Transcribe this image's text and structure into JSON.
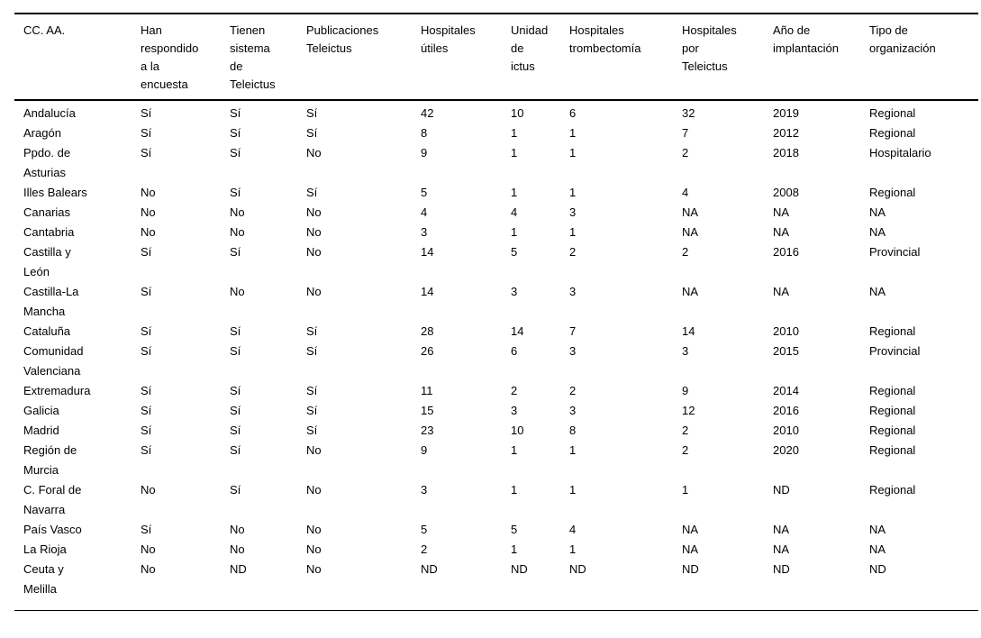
{
  "page": {
    "background_color": "#ffffff",
    "text_color": "#000000"
  },
  "chart_data": {
    "type": "table",
    "title": "",
    "columns": [
      "CC. AA.",
      "Han respondido a la encuesta",
      "Tienen sistema de Teleictus",
      "Publicaciones Teleictus",
      "Hospitales útiles",
      "Unidad de ictus",
      "Hospitales trombectomía",
      "Hospitales por Teleictus",
      "Año de implantación",
      "Tipo de organización"
    ]
  },
  "table": {
    "column_headers": [
      "CC. AA.",
      "Han\nrespondido\na la\nencuesta",
      "Tienen\nsistema\nde\nTeleictus",
      "Publicaciones\nTeleictus",
      "Hospitales\nútiles",
      "Unidad\nde\nictus",
      "Hospitales\ntrombectomía",
      "Hospitales\npor\nTeleictus",
      "Año de\nimplantación",
      "Tipo de\norganización"
    ],
    "rows": [
      [
        "Andalucía",
        "Sí",
        "Sí",
        "Sí",
        "42",
        "10",
        "6",
        "32",
        "2019",
        "Regional"
      ],
      [
        "Aragón",
        "Sí",
        "Sí",
        "Sí",
        "8",
        "1",
        "1",
        "7",
        "2012",
        "Regional"
      ],
      [
        "Ppdo. de Asturias",
        "Sí",
        "Sí",
        "No",
        "9",
        "1",
        "1",
        "2",
        "2018",
        "Hospitalario"
      ],
      [
        "Illes Balears",
        "No",
        "Sí",
        "Sí",
        "5",
        "1",
        "1",
        "4",
        "2008",
        "Regional"
      ],
      [
        "Canarias",
        "No",
        "No",
        "No",
        "4",
        "4",
        "3",
        "NA",
        "NA",
        "NA"
      ],
      [
        "Cantabria",
        "No",
        "No",
        "No",
        "3",
        "1",
        "1",
        "NA",
        "NA",
        "NA"
      ],
      [
        "Castilla y León",
        "Sí",
        "Sí",
        "No",
        "14",
        "5",
        "2",
        "2",
        "2016",
        "Provincial"
      ],
      [
        "Castilla-La Mancha",
        "Sí",
        "No",
        "No",
        "14",
        "3",
        "3",
        "NA",
        "NA",
        "NA"
      ],
      [
        "Cataluña",
        "Sí",
        "Sí",
        "Sí",
        "28",
        "14",
        "7",
        "14",
        "2010",
        "Regional"
      ],
      [
        "Comunidad Valenciana",
        "Sí",
        "Sí",
        "Sí",
        "26",
        "6",
        "3",
        "3",
        "2015",
        "Provincial"
      ],
      [
        "Extremadura",
        "Sí",
        "Sí",
        "Sí",
        "11",
        "2",
        "2",
        "9",
        "2014",
        "Regional"
      ],
      [
        "Galicia",
        "Sí",
        "Sí",
        "Sí",
        "15",
        "3",
        "3",
        "12",
        "2016",
        "Regional"
      ],
      [
        "Madrid",
        "Sí",
        "Sí",
        "Sí",
        "23",
        "10",
        "8",
        "2",
        "2010",
        "Regional"
      ],
      [
        "Región de Murcia",
        "Sí",
        "Sí",
        "No",
        "9",
        "1",
        "1",
        "2",
        "2020",
        "Regional"
      ],
      [
        "C. Foral de Navarra",
        "No",
        "Sí",
        "No",
        "3",
        "1",
        "1",
        "1",
        "ND",
        "Regional"
      ],
      [
        "País Vasco",
        "Sí",
        "No",
        "No",
        "5",
        "5",
        "4",
        "NA",
        "NA",
        "NA"
      ],
      [
        "La Rioja",
        "No",
        "No",
        "No",
        "2",
        "1",
        "1",
        "NA",
        "NA",
        "NA"
      ],
      [
        "Ceuta y Melilla",
        "No",
        "ND",
        "No",
        "ND",
        "ND",
        "ND",
        "ND",
        "ND",
        "ND"
      ]
    ]
  }
}
